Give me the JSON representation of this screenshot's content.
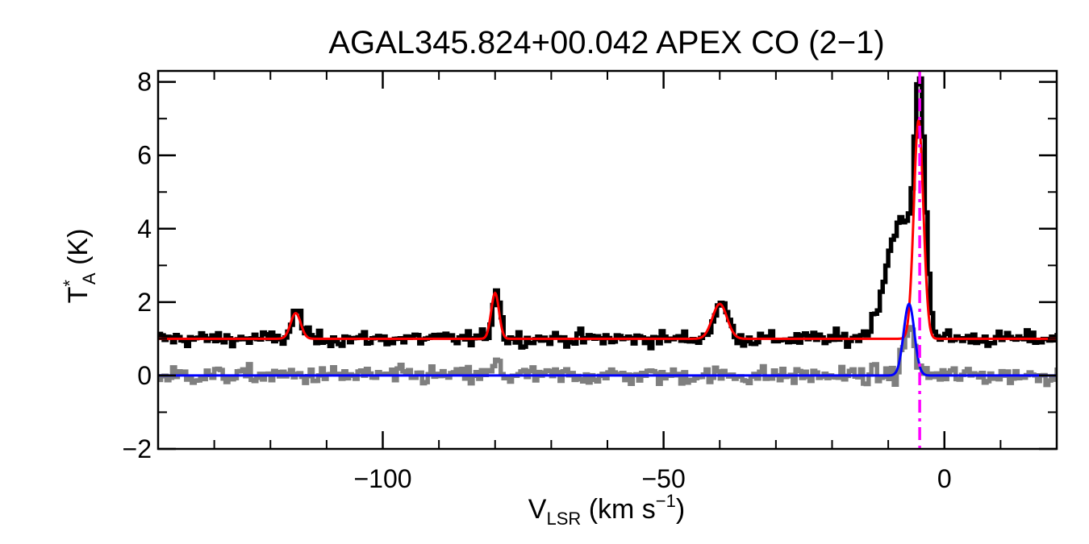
{
  "chart_data": {
    "type": "line",
    "title": "AGAL345.824+00.042  APEX CO (2−1)",
    "ylabel": {
      "main": "T",
      "sup": "*",
      "sub": "A",
      "unit": " (K)"
    },
    "xlabel": {
      "main": "V",
      "sub": "LSR",
      "unit_pre": " (km s",
      "unit_sup": "−1",
      "unit_post": ")"
    },
    "xlim": [
      -140,
      20
    ],
    "ylim": [
      -2,
      8.3
    ],
    "x_major_ticks": [
      -100,
      -50,
      0
    ],
    "x_tick_labels": [
      "−100",
      "−50",
      "0"
    ],
    "x_minor_step": 10,
    "y_major_ticks": [
      -2,
      0,
      2,
      4,
      6,
      8
    ],
    "y_tick_labels": [
      "−2",
      "0",
      "2",
      "4",
      "6",
      "8"
    ],
    "y_minor_step": 1,
    "grid": false,
    "markers": {
      "vline_x": -4.4,
      "vline_color": "#ff00ff",
      "vline_style": "dash-dot"
    },
    "series": [
      {
        "role": "observed spectrum (offset +1 K)",
        "color": "#000000",
        "style": "histogram",
        "baseline": 1.0,
        "noise_rms": 0.1,
        "profile_components": [
          {
            "center": -115.5,
            "amp": 0.75,
            "sigma": 0.9
          },
          {
            "center": -80.0,
            "amp": 1.35,
            "sigma": 0.7
          },
          {
            "center": -40.0,
            "amp": 0.95,
            "sigma": 1.3
          },
          {
            "center": -4.6,
            "amp": 5.8,
            "sigma": 0.9
          },
          {
            "center": -8.0,
            "amp": 3.2,
            "sigma": 2.6
          }
        ]
      },
      {
        "role": "residual spectrum",
        "color": "#7f7f7f",
        "style": "histogram",
        "baseline": 0.0,
        "noise_rms": 0.12,
        "profile_components": [
          {
            "center": -80.0,
            "amp": 0.35,
            "sigma": 0.6
          },
          {
            "center": -6.5,
            "amp": 1.3,
            "sigma": 1.0
          }
        ]
      },
      {
        "role": "total gaussian fit",
        "color": "#ff0000",
        "style": "line",
        "baseline": 1.0,
        "gaussians": [
          {
            "center": -115.5,
            "amp": 0.7,
            "sigma": 0.9
          },
          {
            "center": -80.0,
            "amp": 1.25,
            "sigma": 0.7
          },
          {
            "center": -40.0,
            "amp": 0.95,
            "sigma": 1.3
          },
          {
            "center": -4.6,
            "amp": 5.95,
            "sigma": 0.85
          }
        ]
      },
      {
        "role": "single component fit",
        "color": "#0000ff",
        "style": "line",
        "baseline": 0.0,
        "gaussians": [
          {
            "center": -6.3,
            "amp": 1.95,
            "sigma": 0.95
          }
        ]
      }
    ]
  }
}
